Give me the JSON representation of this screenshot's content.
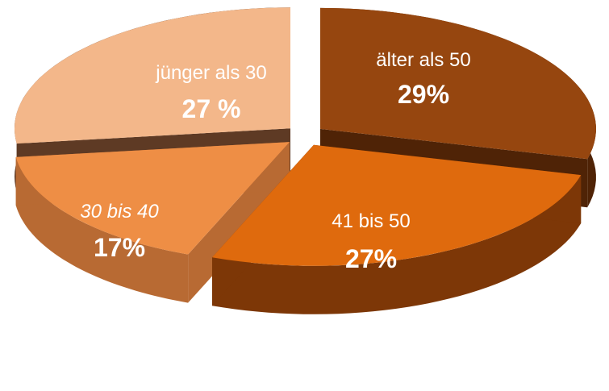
{
  "chart_data": {
    "type": "pie",
    "style": "3d-exploded",
    "slices": [
      {
        "label": "älter als 50",
        "value": 29,
        "value_label": "29%",
        "color": "#96460f",
        "side_color": "#4f2306",
        "label_italic": false
      },
      {
        "label": "41 bis 50",
        "value": 27,
        "value_label": "27%",
        "color": "#df6a0d",
        "side_color": "#7d3707",
        "label_italic": false
      },
      {
        "label": "30 bis 40",
        "value": 17,
        "value_label": "17%",
        "color": "#ee8e45",
        "side_color": "#b86a33",
        "label_italic": true
      },
      {
        "label": "jünger als 30",
        "value": 27,
        "value_label": "27 %",
        "color": "#f3b78a",
        "side_color": "#5e3a24",
        "label_italic": false
      }
    ]
  }
}
